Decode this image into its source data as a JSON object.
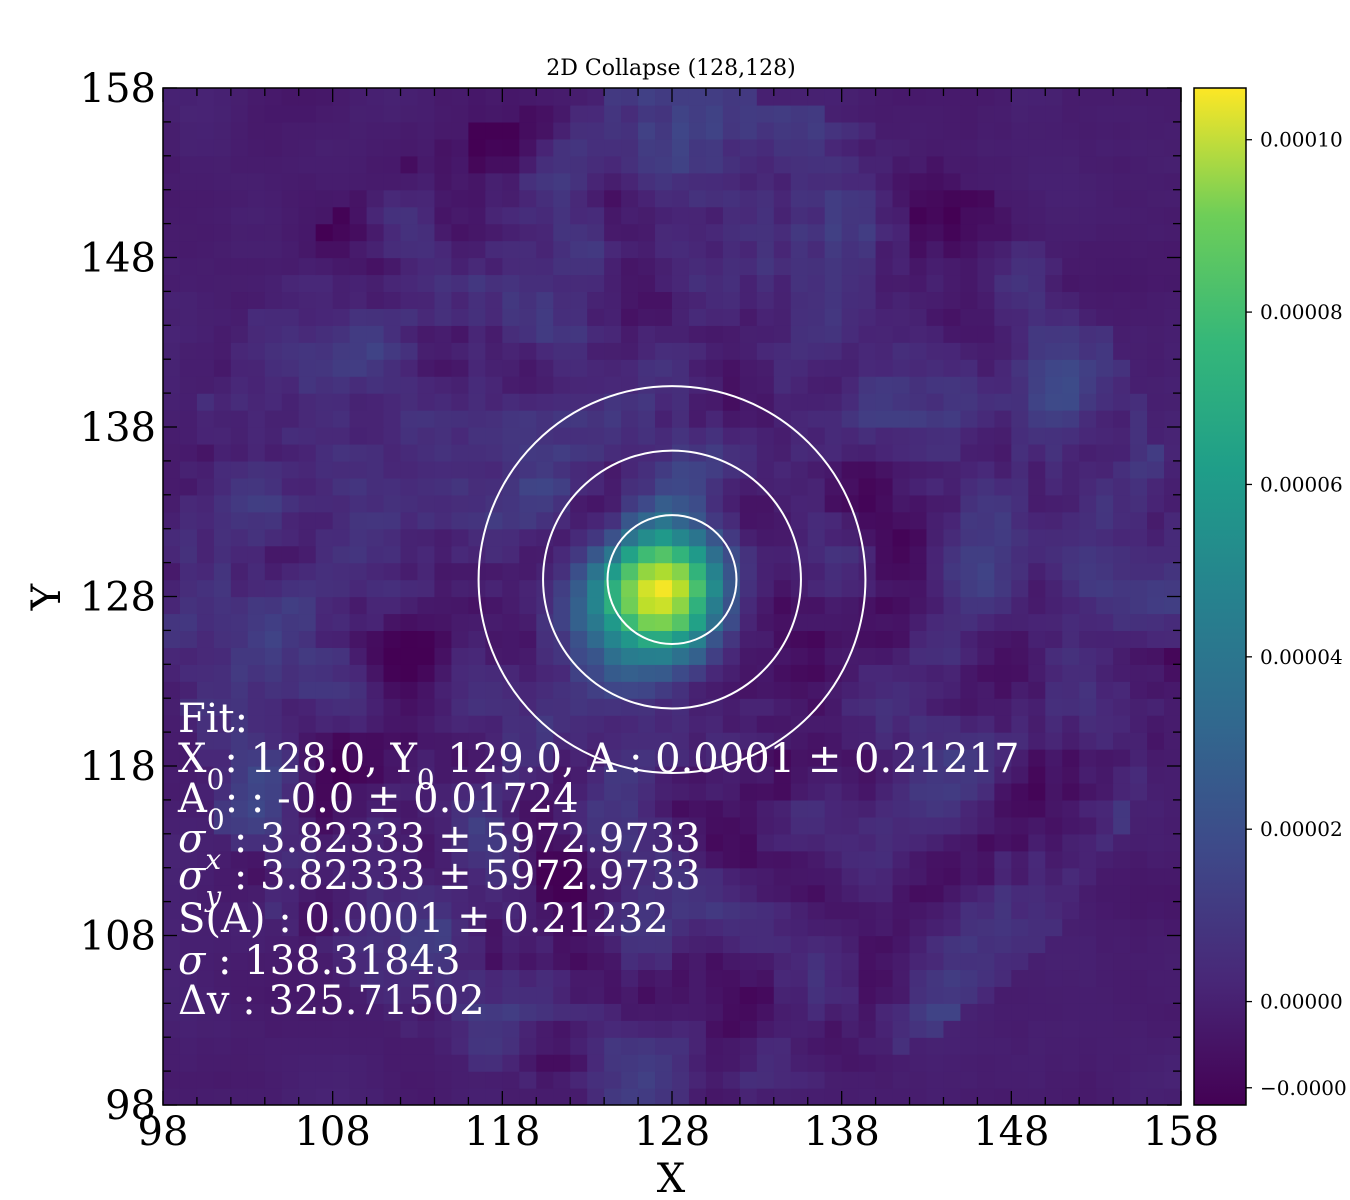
{
  "chart_data": {
    "type": "heatmap",
    "title": "2D Collapse  (128,128)",
    "xlabel": "X",
    "ylabel": "Y",
    "xlim": [
      98,
      158
    ],
    "ylim": [
      98,
      158
    ],
    "xticks": [
      "98",
      "108",
      "118",
      "128",
      "138",
      "148",
      "158"
    ],
    "yticks": [
      "98",
      "108",
      "118",
      "128",
      "138",
      "148",
      "158"
    ],
    "colormap": "viridis",
    "colorbar": {
      "range": [
        -1.2e-05,
        0.000106
      ],
      "ticks": [
        {
          "value": 0.0001,
          "label": "0.00010"
        },
        {
          "value": 8e-05,
          "label": "0.00008"
        },
        {
          "value": 6e-05,
          "label": "0.00006"
        },
        {
          "value": 4e-05,
          "label": "0.00004"
        },
        {
          "value": 2e-05,
          "label": "0.00002"
        },
        {
          "value": 0.0,
          "label": "0.00000"
        },
        {
          "value": -1e-05,
          "label": "−0.0000"
        }
      ]
    },
    "source": {
      "x0": 128.0,
      "y0": 129.0,
      "amplitude": 0.000106,
      "sigma": 3.82333
    },
    "apertures": [
      {
        "center": [
          128,
          129
        ],
        "radius": 3.8
      },
      {
        "center": [
          128,
          129
        ],
        "radius": 7.6
      },
      {
        "center": [
          128,
          129
        ],
        "radius": 11.4
      }
    ]
  },
  "annotation": {
    "lines": [
      {
        "main": "Fit:"
      },
      {
        "main": "X",
        "sub": "0",
        "rest": ": 128.0, Y",
        "sub2": "0",
        "rest2": " 129.0, A : 0.0001 ± 0.21217"
      },
      {
        "main": "A",
        "sub": "0",
        "rest": ": : -0.0 ± 0.01724"
      },
      {
        "sym": "σ",
        "sub": "x",
        "rest": " : 3.82333 ± 5972.9733"
      },
      {
        "sym": "σ",
        "sub": "y",
        "rest": " : 3.82333 ± 5972.9733"
      },
      {
        "main": "S(A) : 0.0001 ± 0.21232"
      },
      {
        "sym": "σ",
        "rest": " : 138.31843"
      },
      {
        "main": "Δv : 325.71502"
      }
    ]
  },
  "colors": {
    "viridis_low": "#440154",
    "viridis_mid": "#21918c",
    "viridis_high": "#fde725",
    "aperture": "#ffffff",
    "annotation_text": "#ffffff"
  }
}
